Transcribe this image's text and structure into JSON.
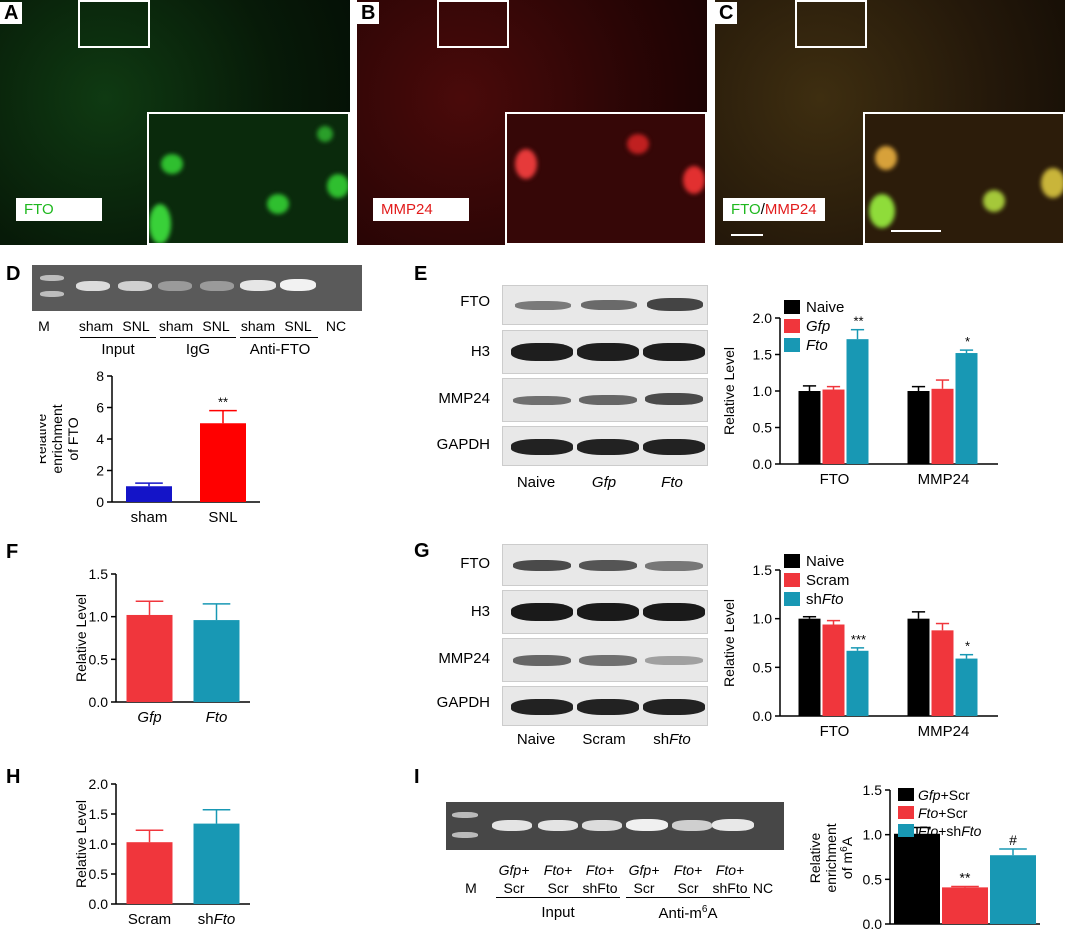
{
  "panels": {
    "A": {
      "label": "A",
      "stain": "FTO",
      "stain_color": "#1fb81f"
    },
    "B": {
      "label": "B",
      "stain": "MMP24",
      "stain_color": "#e21b1b"
    },
    "C": {
      "label": "C",
      "stain_a": "FTO",
      "stain_sep": "/",
      "stain_b": "MMP24"
    },
    "D": {
      "label": "D",
      "gel_lanes": [
        "M",
        "sham",
        "SNL",
        "sham",
        "SNL",
        "sham",
        "SNL",
        "NC"
      ],
      "groups": [
        "Input",
        "IgG",
        "Anti-FTO"
      ]
    },
    "E": {
      "label": "E",
      "blot_rows": [
        "FTO",
        "H3",
        "MMP24",
        "GAPDH"
      ],
      "lanes": [
        "Naive",
        "Gfp",
        "Fto"
      ]
    },
    "F": {
      "label": "F"
    },
    "G": {
      "label": "G",
      "blot_rows": [
        "FTO",
        "H3",
        "MMP24",
        "GAPDH"
      ],
      "lanes": [
        "Naive",
        "Scram",
        "shFto"
      ],
      "lane_prefix": "sh",
      "lane_italic": "Fto"
    },
    "H": {
      "label": "H"
    },
    "I": {
      "label": "I",
      "gel_lanes_top": [
        "Gfp+",
        "Fto+",
        "Fto+",
        "Gfp+",
        "Fto+",
        "Fto+"
      ],
      "gel_lanes_bottom": [
        "Scr",
        "Scr",
        "shFto",
        "Scr",
        "Scr",
        "shFto"
      ],
      "m_label": "M",
      "nc_label": "NC",
      "groups": [
        "Input",
        "Anti-m6A"
      ]
    }
  },
  "chart_data": [
    {
      "id": "D",
      "type": "bar",
      "categories": [
        "sham",
        "SNL"
      ],
      "values": [
        1.0,
        5.0
      ],
      "errors": [
        0.2,
        0.8
      ],
      "colors": [
        "#1414c8",
        "#ff0000"
      ],
      "ylabel": "Relative enrichment of FTO",
      "ylabel_lines": [
        "Relative",
        "enrichment",
        "of FTO"
      ],
      "ylim": [
        0,
        8
      ],
      "yticks": [
        "0",
        "2",
        "4",
        "6",
        "8"
      ],
      "annotations": [
        "",
        "**"
      ]
    },
    {
      "id": "E",
      "type": "bar",
      "categories": [
        "FTO",
        "MMP24"
      ],
      "series": [
        {
          "name": "Naive",
          "values": [
            1.0,
            1.0
          ],
          "errors": [
            0.07,
            0.06
          ],
          "color": "#000000"
        },
        {
          "name": "Gfp",
          "values": [
            1.02,
            1.03
          ],
          "errors": [
            0.04,
            0.12
          ],
          "color": "#f0363c"
        },
        {
          "name": "Fto",
          "values": [
            1.71,
            1.52
          ],
          "errors": [
            0.13,
            0.04
          ],
          "color": "#1898b4"
        }
      ],
      "ylabel": "Relative Level",
      "ylim": [
        0,
        2.0
      ],
      "yticks": [
        "0.0",
        "0.5",
        "1.0",
        "1.5",
        "2.0"
      ],
      "annotations": [
        [
          "",
          "",
          "**"
        ],
        [
          "",
          "",
          "*"
        ]
      ],
      "legend": "top-left",
      "italic_legend": [
        false,
        true,
        true
      ]
    },
    {
      "id": "F",
      "type": "bar",
      "categories": [
        "Gfp",
        "Fto"
      ],
      "values": [
        1.02,
        0.96
      ],
      "errors": [
        0.16,
        0.19
      ],
      "colors": [
        "#f0363c",
        "#1898b4"
      ],
      "ylabel": "Relative Level",
      "ylim": [
        0,
        1.5
      ],
      "yticks": [
        "0.0",
        "0.5",
        "1.0",
        "1.5"
      ],
      "italic_categories": true
    },
    {
      "id": "G",
      "type": "bar",
      "categories": [
        "FTO",
        "MMP24"
      ],
      "series": [
        {
          "name": "Naive",
          "values": [
            1.0,
            1.0
          ],
          "errors": [
            0.02,
            0.07
          ],
          "color": "#000000"
        },
        {
          "name": "Scram",
          "values": [
            0.94,
            0.88
          ],
          "errors": [
            0.04,
            0.07
          ],
          "color": "#f0363c"
        },
        {
          "name": "shFto",
          "values": [
            0.67,
            0.59
          ],
          "errors": [
            0.03,
            0.04
          ],
          "color": "#1898b4"
        }
      ],
      "ylabel": "Relative Level",
      "ylim": [
        0,
        1.5
      ],
      "yticks": [
        "0.0",
        "0.5",
        "1.0",
        "1.5"
      ],
      "annotations": [
        [
          "",
          "",
          "***"
        ],
        [
          "",
          "",
          "*"
        ]
      ],
      "legend": "top-left"
    },
    {
      "id": "H",
      "type": "bar",
      "categories": [
        "Scram",
        "shFto"
      ],
      "values": [
        1.03,
        1.34
      ],
      "errors": [
        0.2,
        0.23
      ],
      "colors": [
        "#f0363c",
        "#1898b4"
      ],
      "ylabel": "Relative Level",
      "ylim": [
        0,
        2.0
      ],
      "yticks": [
        "0.0",
        "0.5",
        "1.0",
        "1.5",
        "2.0"
      ]
    },
    {
      "id": "I",
      "type": "bar",
      "categories": [
        "Gfp+Scr",
        "Fto+Scr",
        "Fto+shFto"
      ],
      "values": [
        1.01,
        0.41,
        0.77
      ],
      "errors": [
        0.07,
        0.01,
        0.07
      ],
      "colors": [
        "#000000",
        "#f0363c",
        "#1898b4"
      ],
      "ylabel": "Relative enrichment of m6A",
      "ylim": [
        0,
        1.5
      ],
      "yticks": [
        "0.0",
        "0.5",
        "1.0",
        "1.5"
      ],
      "annotations": [
        "",
        "**",
        "#"
      ],
      "legend": "top-right"
    }
  ]
}
